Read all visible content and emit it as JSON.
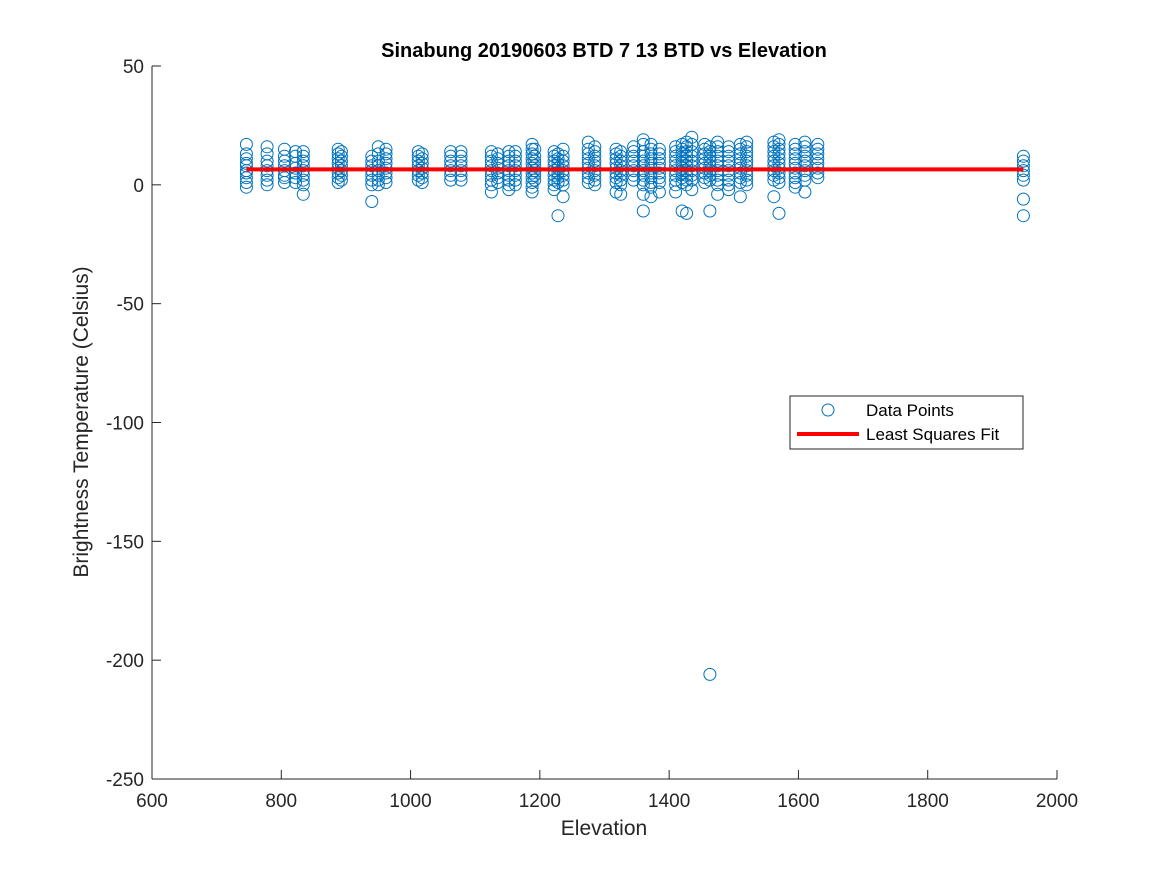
{
  "chart_data": {
    "type": "scatter",
    "title": "Sinabung 20190603 BTD 7 13 BTD vs Elevation",
    "xlabel": "Elevation",
    "ylabel": "Brightness Temperature (Celsius)",
    "xlim": [
      600,
      2000
    ],
    "ylim": [
      -250,
      50
    ],
    "xticks": [
      600,
      800,
      1000,
      1200,
      1400,
      1600,
      1800,
      2000
    ],
    "yticks": [
      -250,
      -200,
      -150,
      -100,
      -50,
      0,
      50
    ],
    "grid": false,
    "legend_position": "center-right",
    "legend": [
      {
        "label": "Data Points",
        "marker": "circle",
        "color": "#0072BD"
      },
      {
        "label": "Least Squares Fit",
        "line": "solid",
        "color": "#FF0000"
      }
    ],
    "series": [
      {
        "name": "Data Points",
        "kind": "scatter",
        "color": "#0072BD",
        "columns": [
          {
            "x": 746,
            "y": [
              17,
              13,
              11,
              9,
              8,
              6,
              5,
              3,
              1,
              -1
            ]
          },
          {
            "x": 778,
            "y": [
              16,
              13,
              10,
              8,
              6,
              4,
              2,
              0
            ]
          },
          {
            "x": 805,
            "y": [
              15,
              12,
              10,
              8,
              6,
              4,
              3,
              1
            ]
          },
          {
            "x": 822,
            "y": [
              14,
              12,
              9,
              7,
              5,
              3,
              1
            ]
          },
          {
            "x": 834,
            "y": [
              14,
              12,
              10,
              8,
              6,
              4,
              2,
              0,
              -4
            ]
          },
          {
            "x": 888,
            "y": [
              15,
              13,
              11,
              9,
              7,
              5,
              3,
              1
            ]
          },
          {
            "x": 893,
            "y": [
              14,
              12,
              10,
              8,
              6,
              4,
              2
            ]
          },
          {
            "x": 940,
            "y": [
              12,
              10,
              8,
              6,
              4,
              2,
              0,
              -7
            ]
          },
          {
            "x": 950,
            "y": [
              16,
              13,
              10,
              8,
              6,
              4,
              2,
              0
            ]
          },
          {
            "x": 962,
            "y": [
              15,
              13,
              11,
              9,
              7,
              5,
              3,
              1
            ]
          },
          {
            "x": 1012,
            "y": [
              14,
              12,
              10,
              8,
              6,
              4,
              2
            ]
          },
          {
            "x": 1018,
            "y": [
              13,
              11,
              9,
              7,
              5,
              3,
              1
            ]
          },
          {
            "x": 1062,
            "y": [
              14,
              12,
              10,
              8,
              6,
              4,
              2
            ]
          },
          {
            "x": 1078,
            "y": [
              14,
              12,
              10,
              8,
              6,
              4,
              2
            ]
          },
          {
            "x": 1125,
            "y": [
              14,
              12,
              10,
              8,
              6,
              4,
              2,
              0,
              -3
            ]
          },
          {
            "x": 1135,
            "y": [
              13,
              11,
              9,
              7,
              5,
              3,
              1
            ]
          },
          {
            "x": 1152,
            "y": [
              14,
              12,
              10,
              8,
              6,
              4,
              2,
              0,
              -2
            ]
          },
          {
            "x": 1162,
            "y": [
              14,
              12,
              10,
              8,
              6,
              4,
              2,
              0
            ]
          },
          {
            "x": 1188,
            "y": [
              17,
              15,
              13,
              11,
              9,
              7,
              5,
              3,
              1,
              -1,
              -3
            ]
          },
          {
            "x": 1192,
            "y": [
              15,
              12,
              10,
              8,
              6,
              4,
              2
            ]
          },
          {
            "x": 1222,
            "y": [
              14,
              12,
              10,
              8,
              6,
              4,
              2,
              0,
              -2
            ]
          },
          {
            "x": 1228,
            "y": [
              13,
              11,
              9,
              7,
              5,
              3,
              1,
              -13
            ]
          },
          {
            "x": 1236,
            "y": [
              15,
              12,
              10,
              8,
              6,
              4,
              2,
              0,
              -5
            ]
          },
          {
            "x": 1275,
            "y": [
              18,
              15,
              13,
              11,
              9,
              7,
              5,
              3,
              1
            ]
          },
          {
            "x": 1285,
            "y": [
              16,
              14,
              12,
              10,
              8,
              6,
              4,
              2,
              0
            ]
          },
          {
            "x": 1318,
            "y": [
              15,
              13,
              11,
              9,
              7,
              5,
              3,
              1,
              -3
            ]
          },
          {
            "x": 1325,
            "y": [
              14,
              12,
              10,
              8,
              6,
              4,
              2,
              0,
              -4
            ]
          },
          {
            "x": 1345,
            "y": [
              16,
              14,
              12,
              10,
              8,
              6,
              4,
              2
            ]
          },
          {
            "x": 1360,
            "y": [
              19,
              17,
              14,
              12,
              10,
              8,
              6,
              4,
              2,
              0,
              -4,
              -11
            ]
          },
          {
            "x": 1372,
            "y": [
              17,
              15,
              13,
              11,
              9,
              7,
              5,
              3,
              1,
              -1,
              -5
            ]
          },
          {
            "x": 1385,
            "y": [
              15,
              13,
              11,
              9,
              7,
              5,
              3,
              1,
              -3
            ]
          },
          {
            "x": 1410,
            "y": [
              16,
              14,
              12,
              10,
              8,
              6,
              4,
              2,
              0,
              -3
            ]
          },
          {
            "x": 1420,
            "y": [
              17,
              15,
              13,
              11,
              9,
              7,
              5,
              3,
              1,
              -11
            ]
          },
          {
            "x": 1427,
            "y": [
              18,
              16,
              14,
              12,
              10,
              8,
              6,
              4,
              2,
              0,
              -12
            ]
          },
          {
            "x": 1435,
            "y": [
              20,
              17,
              14,
              12,
              10,
              8,
              6,
              4,
              2,
              -2
            ]
          },
          {
            "x": 1455,
            "y": [
              17,
              15,
              13,
              11,
              9,
              7,
              5,
              3,
              1
            ]
          },
          {
            "x": 1463,
            "y": [
              16,
              14,
              12,
              10,
              8,
              6,
              4,
              2,
              -11,
              -206
            ]
          },
          {
            "x": 1475,
            "y": [
              18,
              16,
              14,
              12,
              10,
              8,
              6,
              4,
              2,
              0,
              -4
            ]
          },
          {
            "x": 1492,
            "y": [
              16,
              14,
              12,
              10,
              8,
              6,
              4,
              2,
              0,
              -2
            ]
          },
          {
            "x": 1510,
            "y": [
              17,
              15,
              13,
              11,
              9,
              7,
              5,
              3,
              1,
              -5
            ]
          },
          {
            "x": 1520,
            "y": [
              18,
              16,
              14,
              12,
              10,
              8,
              6,
              4,
              2,
              0
            ]
          },
          {
            "x": 1562,
            "y": [
              18,
              16,
              14,
              12,
              10,
              8,
              6,
              4,
              2,
              -5
            ]
          },
          {
            "x": 1570,
            "y": [
              19,
              17,
              15,
              13,
              11,
              9,
              7,
              5,
              3,
              1,
              -12
            ]
          },
          {
            "x": 1595,
            "y": [
              17,
              15,
              13,
              11,
              9,
              7,
              5,
              3,
              1,
              -1
            ]
          },
          {
            "x": 1610,
            "y": [
              18,
              16,
              14,
              12,
              10,
              8,
              6,
              4,
              2,
              -3
            ]
          },
          {
            "x": 1630,
            "y": [
              17,
              15,
              13,
              11,
              9,
              7,
              5,
              3
            ]
          },
          {
            "x": 1948,
            "y": [
              12,
              10,
              8,
              6,
              4,
              2,
              -6,
              -13
            ]
          }
        ]
      },
      {
        "name": "Least Squares Fit",
        "kind": "line",
        "color": "#FF0000",
        "x": [
          746,
          1948
        ],
        "y": [
          6.5,
          6.5
        ]
      }
    ]
  }
}
